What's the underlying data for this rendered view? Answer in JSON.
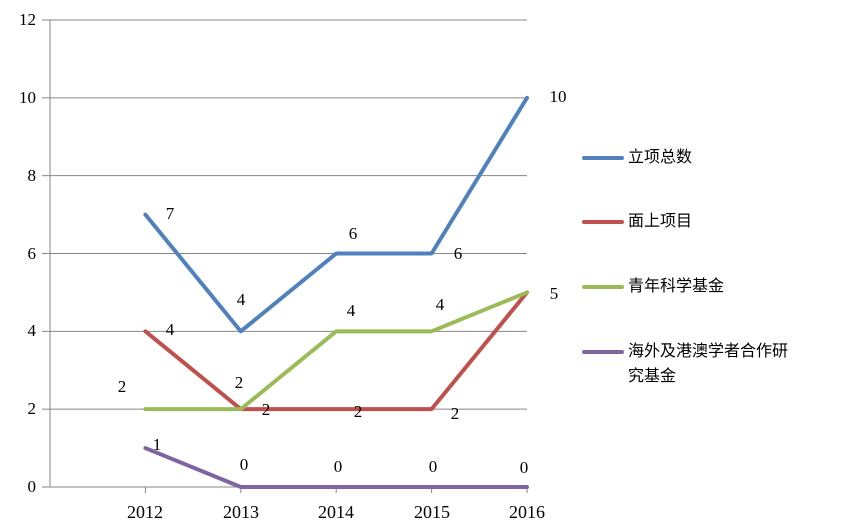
{
  "chart_data": {
    "type": "line",
    "title": "",
    "categories": [
      "2012",
      "2013",
      "2014",
      "2015",
      "2016"
    ],
    "y_ticks": [
      0,
      2,
      4,
      6,
      8,
      10,
      12
    ],
    "ylim": [
      0,
      12
    ],
    "grid": true,
    "legend_position": "right",
    "axis_color": "#868686",
    "grid_color": "#868686",
    "series": [
      {
        "name": "立项总数",
        "color": "#4F81BD",
        "values": [
          7,
          4,
          6,
          6,
          10
        ],
        "label_offsets": [
          [
            25,
            -1
          ],
          [
            0,
            -31
          ],
          [
            17,
            -20
          ],
          [
            26,
            0
          ],
          [
            31,
            -1
          ]
        ]
      },
      {
        "name": "面上项目",
        "color": "#C0504D",
        "values": [
          4,
          2,
          2,
          2,
          5
        ],
        "label_offsets": [
          [
            25,
            -1
          ],
          [
            25,
            1
          ],
          [
            22,
            3
          ],
          [
            23,
            5
          ],
          [
            27,
            2
          ]
        ]
      },
      {
        "name": "青年科学基金",
        "color": "#9BBB59",
        "values": [
          2,
          2,
          4,
          4,
          5
        ],
        "label_offsets": [
          [
            -23,
            -22
          ],
          [
            -2,
            -26
          ],
          [
            15,
            -20
          ],
          [
            8,
            -26
          ],
          null
        ]
      },
      {
        "name": "海外及港澳学者合作研究基金",
        "color": "#8064A2",
        "values": [
          1,
          0,
          0,
          0,
          0
        ],
        "label_offsets": [
          [
            12,
            -3
          ],
          [
            3,
            -22
          ],
          [
            2,
            -20
          ],
          [
            1,
            -20
          ],
          [
            -3,
            -19
          ]
        ]
      }
    ]
  }
}
